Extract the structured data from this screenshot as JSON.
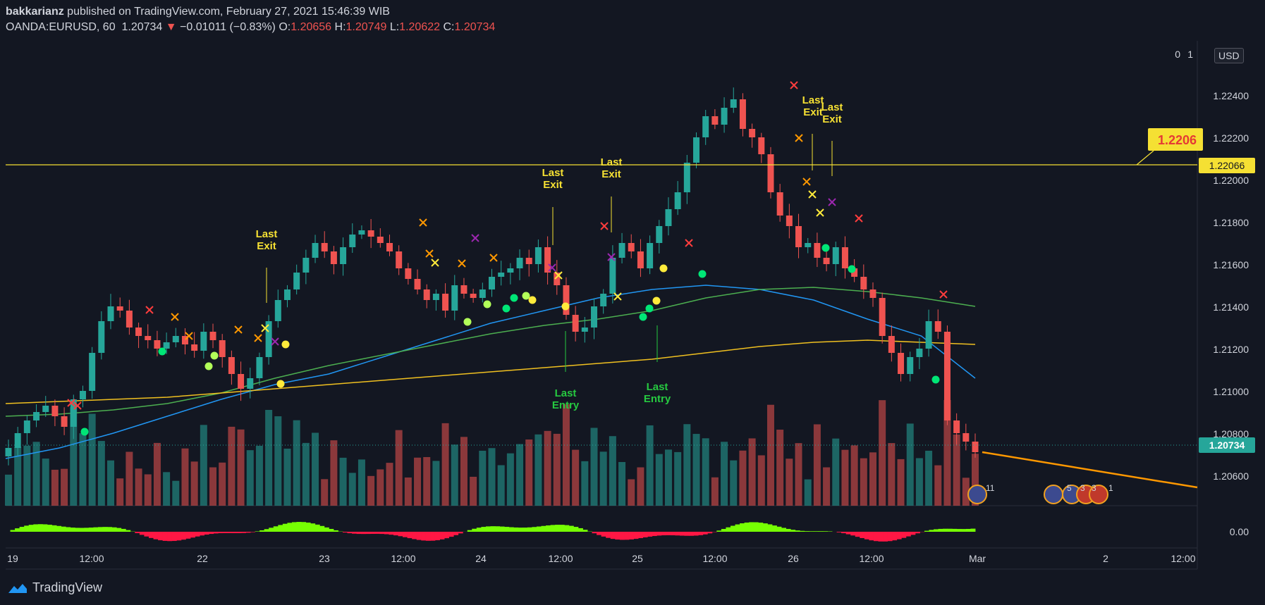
{
  "header": {
    "publisher": "bakkarianz",
    "published_text": "published on TradingView.com, February 27, 2021 15:46:39 WIB",
    "symbol": "OANDA:EURUSD, 60",
    "last": "1.20734",
    "change": "−0.01011 (−0.83%)",
    "open_label": "O:",
    "open": "1.20656",
    "high_label": "H:",
    "high": "1.20749",
    "low_label": "L:",
    "low": "1.20622",
    "close_label": "C:",
    "close": "1.20734"
  },
  "currency_badge": "USD",
  "price_axis": {
    "ticks": [
      "1.22400",
      "1.22200",
      "1.22000",
      "1.21800",
      "1.21600",
      "1.21400",
      "1.21200",
      "1.21000",
      "1.20800",
      "1.20600"
    ],
    "top_partial": "1",
    "top_partial_suffix": "0",
    "current_price": "1.20734",
    "hline_price": "1.22066",
    "hline_callout": "1.2206"
  },
  "oscillator_axis": {
    "tick": "0.00"
  },
  "time_axis": {
    "labels": [
      "19",
      "12:00",
      "22",
      "23",
      "12:00",
      "24",
      "12:00",
      "25",
      "12:00",
      "26",
      "12:00",
      "Mar",
      "2",
      "12:00"
    ]
  },
  "annotations": [
    {
      "text1": "Last",
      "text2": "Exit",
      "color": "#f5e033"
    },
    {
      "text1": "Last",
      "text2": "Exit",
      "color": "#f5e033"
    },
    {
      "text1": "Last",
      "text2": "Exit",
      "color": "#f5e033"
    },
    {
      "text1": "Last",
      "text2": "Exit",
      "color": "#f5e033"
    },
    {
      "text1": "Last",
      "text2": "Exit",
      "color": "#f5e033"
    },
    {
      "text1": "Last",
      "text2": "Entry",
      "color": "#26c940"
    },
    {
      "text1": "Last",
      "text2": "Entry",
      "color": "#26c940"
    }
  ],
  "event_badges": [
    "11",
    "5",
    "3",
    "3",
    "1"
  ],
  "footer": {
    "brand": "TradingView"
  },
  "colors": {
    "background": "#131722",
    "up": "#26a69a",
    "down": "#ef5350",
    "ma_fast": "#2196f3",
    "ma_mid": "#4caf50",
    "ma_slow": "#f0c020",
    "hline": "#f5e033",
    "trend": "#ff9800"
  },
  "chart_data": {
    "type": "candlestick",
    "symbol": "OANDA:EURUSD",
    "interval": "60",
    "ylim": [
      1.205,
      1.226
    ],
    "current_price": 1.20734,
    "horizontal_line": 1.22066,
    "close_path": [
      1.2075,
      1.2082,
      1.2088,
      1.2092,
      1.2095,
      1.209,
      1.2085,
      1.2098,
      1.2102,
      1.212,
      1.2135,
      1.2142,
      1.214,
      1.2132,
      1.2128,
      1.2126,
      1.2122,
      1.2125,
      1.2128,
      1.2124,
      1.2121,
      1.213,
      1.2126,
      1.2118,
      1.211,
      1.2103,
      1.2108,
      1.2118,
      1.2135,
      1.2145,
      1.215,
      1.2158,
      1.2165,
      1.2172,
      1.2168,
      1.2162,
      1.217,
      1.2176,
      1.2178,
      1.2175,
      1.2172,
      1.2168,
      1.216,
      1.2155,
      1.215,
      1.2145,
      1.2148,
      1.214,
      1.2152,
      1.2148,
      1.2146,
      1.215,
      1.2156,
      1.2158,
      1.216,
      1.2165,
      1.2162,
      1.217,
      1.2158,
      1.2152,
      1.2138,
      1.213,
      1.2132,
      1.2142,
      1.2148,
      1.2165,
      1.2172,
      1.2168,
      1.216,
      1.2172,
      1.218,
      1.2188,
      1.2196,
      1.221,
      1.2222,
      1.2232,
      1.2228,
      1.2236,
      1.224,
      1.2226,
      1.2222,
      1.2214,
      1.2196,
      1.2185,
      1.218,
      1.217,
      1.2172,
      1.2165,
      1.2162,
      1.217,
      1.216,
      1.2156,
      1.215,
      1.2146,
      1.2128,
      1.212,
      1.211,
      1.2118,
      1.2122,
      1.2135,
      1.213,
      1.2088,
      1.2082,
      1.2078,
      1.2073
    ],
    "moving_averages": [
      {
        "color": "#2196f3",
        "path": [
          1.207,
          1.2075,
          1.2082,
          1.209,
          1.2098,
          1.2105,
          1.211,
          1.2118,
          1.2126,
          1.2134,
          1.214,
          1.2146,
          1.215,
          1.2152,
          1.215,
          1.2145,
          1.2136,
          1.2128,
          1.2108
        ]
      },
      {
        "color": "#4caf50",
        "path": [
          1.209,
          1.2091,
          1.2093,
          1.2096,
          1.2101,
          1.2108,
          1.2114,
          1.2119,
          1.2124,
          1.2129,
          1.2133,
          1.2136,
          1.214,
          1.2146,
          1.215,
          1.2151,
          1.2149,
          1.2146,
          1.2142
        ]
      },
      {
        "color": "#f0c020",
        "path": [
          1.2096,
          1.2097,
          1.2098,
          1.2099,
          1.2101,
          1.2103,
          1.2105,
          1.2107,
          1.2109,
          1.2111,
          1.2113,
          1.2115,
          1.2117,
          1.212,
          1.2123,
          1.2125,
          1.2126,
          1.2125,
          1.2124
        ]
      }
    ],
    "oscillator": {
      "zero_label": "0.00"
    }
  }
}
